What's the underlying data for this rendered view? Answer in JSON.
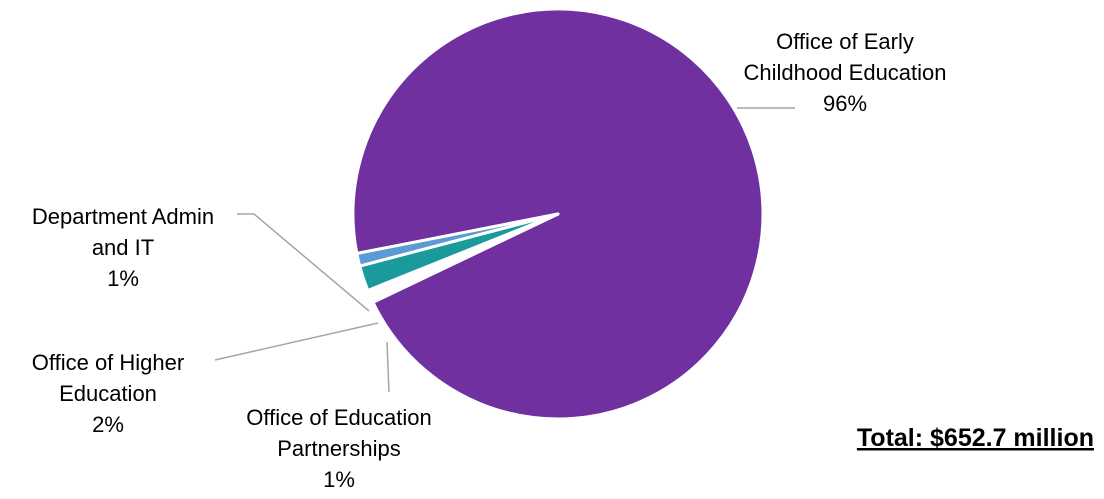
{
  "chart_data": {
    "type": "pie",
    "slices": [
      {
        "label_lines": [
          "Office of Early",
          "Childhood Education"
        ],
        "pct_label": "96%",
        "value": 96,
        "color": "#7030a0"
      },
      {
        "label_lines": [
          "Office of Education",
          "Partnerships"
        ],
        "pct_label": "1%",
        "value": 1,
        "color": "#ffffff"
      },
      {
        "label_lines": [
          "Office of Higher",
          "Education"
        ],
        "pct_label": "2%",
        "value": 2,
        "color": "#1a9a9a"
      },
      {
        "label_lines": [
          "Department Admin",
          "and IT"
        ],
        "pct_label": "1%",
        "value": 1,
        "color": "#5b9bd5"
      }
    ],
    "legend": "none",
    "total_label": "Total: $652.7 million"
  }
}
